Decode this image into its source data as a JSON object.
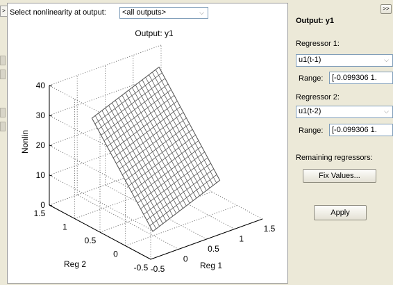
{
  "collapse_left_label": ">",
  "expand_right_label": ">>",
  "top_bar": {
    "label": "Select nonlinearity at output:",
    "output_select_value": "<all outputs>"
  },
  "plot": {
    "title": "Output: y1",
    "zlabel": "Nonlin",
    "xlabel": "Reg 1",
    "ylabel": "Reg 2",
    "z_ticks": [
      "0",
      "10",
      "20",
      "30",
      "40"
    ],
    "reg1_ticks": [
      "-0.5",
      "0",
      "0.5",
      "1",
      "1.5"
    ],
    "reg2_ticks": [
      "-0.5",
      "0",
      "0.5",
      "1",
      "1.5"
    ],
    "mesh_color": "#5a5a5a"
  },
  "right_panel": {
    "title": "Output: y1",
    "regressor1": {
      "label": "Regressor 1:",
      "select_value": "u1(t-1)",
      "range_label": "Range:",
      "range_value": "[-0.099306   1."
    },
    "regressor2": {
      "label": "Regressor 2:",
      "select_value": "u1(t-2)",
      "range_label": "Range:",
      "range_value": "[-0.099306   1."
    },
    "remaining_label": "Remaining regressors:",
    "fix_values_button": "Fix Values...",
    "apply_button": "Apply"
  },
  "chart_data": {
    "type": "surface",
    "title": "Output: y1",
    "xlabel": "Reg 1",
    "ylabel": "Reg 2",
    "zlabel": "Nonlin",
    "xlim": [
      -0.5,
      1.5
    ],
    "ylim": [
      -0.5,
      1.5
    ],
    "zlim": [
      0,
      40
    ],
    "grid": true,
    "surface": {
      "x_range": [
        -0.1,
        1.1
      ],
      "y_range": [
        -0.1,
        1.1
      ],
      "z_corners": {
        "x_min_y_min": 3,
        "x_max_y_min": 12,
        "x_min_y_max": 30,
        "x_max_y_max": 39
      },
      "grid_divisions": 20
    }
  }
}
